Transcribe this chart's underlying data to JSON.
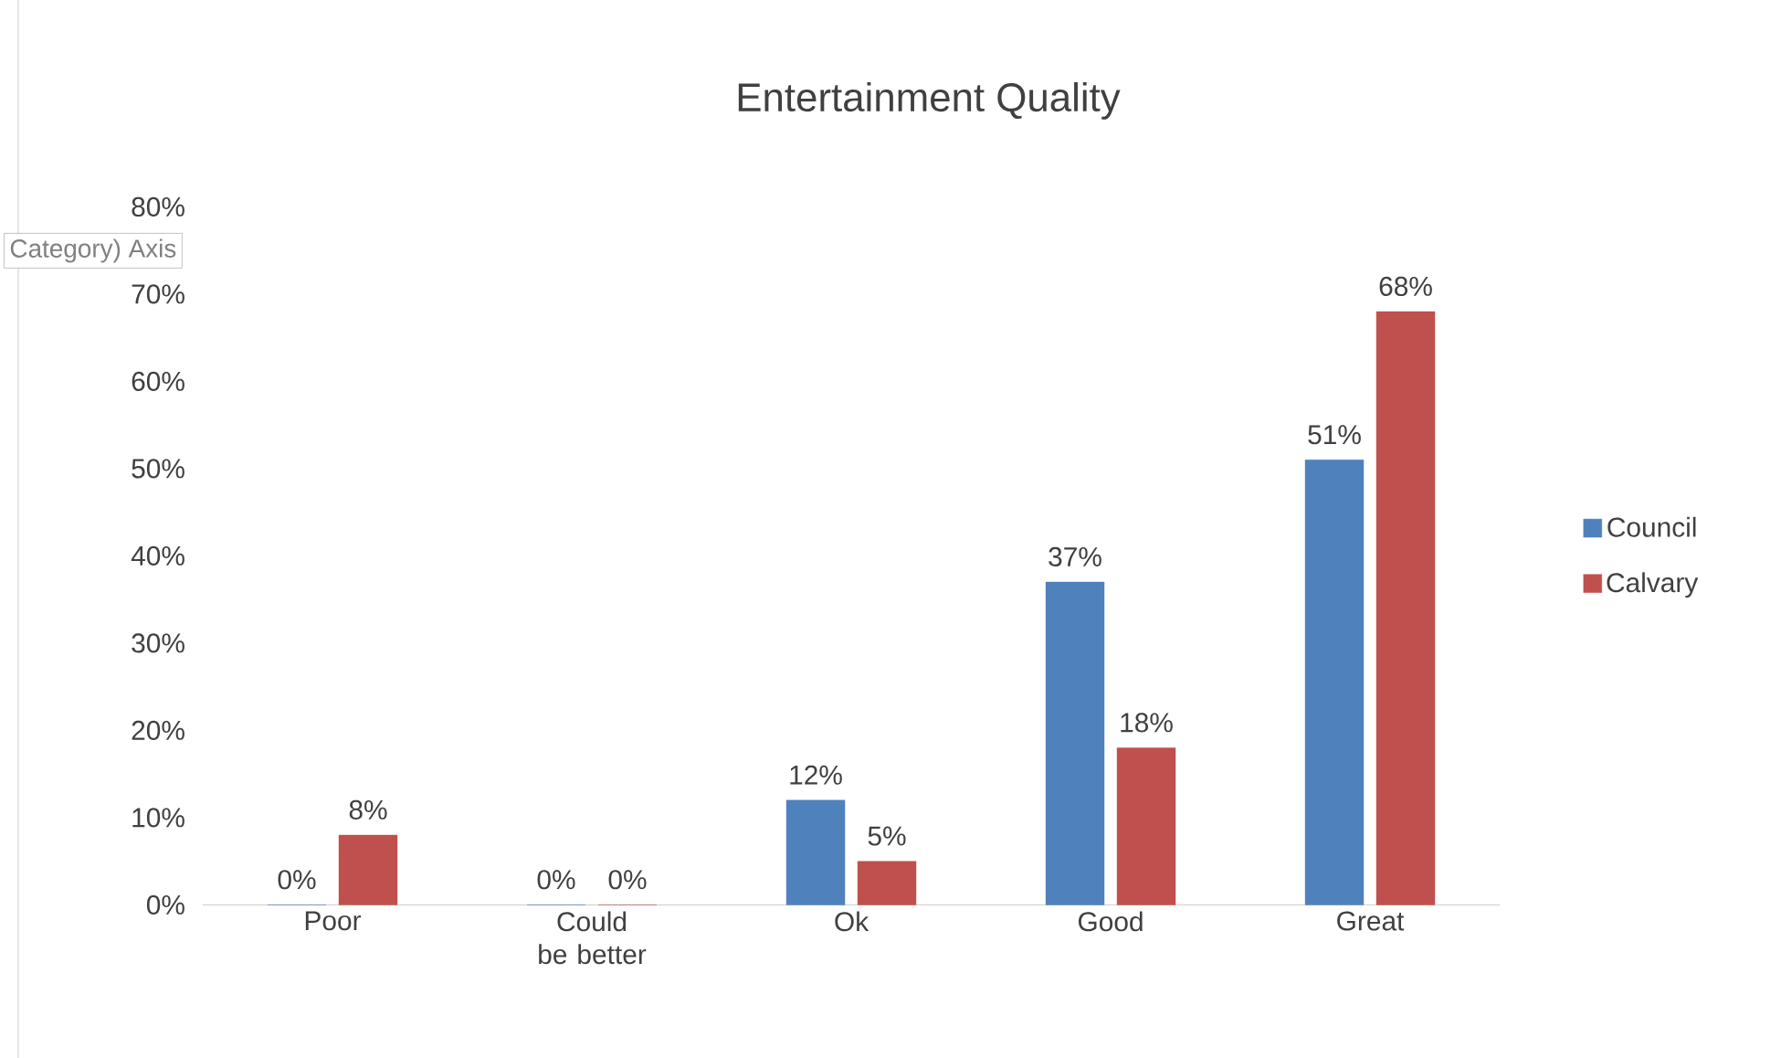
{
  "chart_data": {
    "type": "bar",
    "title": "Entertainment Quality",
    "categories": [
      "Poor",
      "Could be better",
      "Ok",
      "Good",
      "Great"
    ],
    "series": [
      {
        "name": "Council",
        "color": "#4f81bd",
        "values": [
          0,
          0,
          12,
          37,
          51
        ],
        "value_labels": [
          "0%",
          "0%",
          "12%",
          "37%",
          "51%"
        ]
      },
      {
        "name": "Calvary",
        "color": "#c0504d",
        "values": [
          8,
          0,
          5,
          18,
          68
        ],
        "value_labels": [
          "8%",
          "0%",
          "5%",
          "18%",
          "68%"
        ]
      }
    ],
    "ylim": [
      0,
      80
    ],
    "yticks": [
      {
        "value": 0,
        "label": "0%"
      },
      {
        "value": 10,
        "label": "10%"
      },
      {
        "value": 20,
        "label": "20%"
      },
      {
        "value": 30,
        "label": "30%"
      },
      {
        "value": 40,
        "label": "40%"
      },
      {
        "value": 50,
        "label": "50%"
      },
      {
        "value": 60,
        "label": "60%"
      },
      {
        "value": 70,
        "label": "70%"
      },
      {
        "value": 80,
        "label": "80%"
      }
    ],
    "grid": false,
    "legend": "right",
    "annotations": [
      "Category) Axis"
    ]
  }
}
